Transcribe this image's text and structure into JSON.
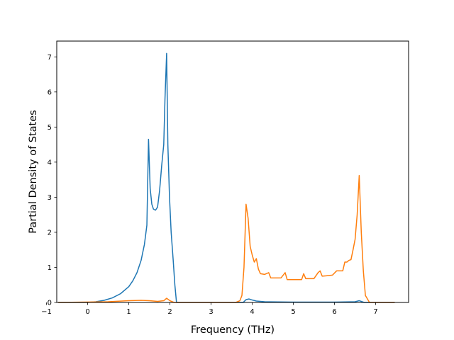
{
  "chart_data": {
    "type": "line",
    "title": "",
    "xlabel": "Frequency (THz)",
    "ylabel": "Partial Density of States",
    "xlim": [
      -0.75,
      7.8
    ],
    "ylim": [
      0,
      7.45
    ],
    "x_ticks": [
      -1,
      0,
      1,
      2,
      3,
      4,
      5,
      6,
      7
    ],
    "y_ticks": [
      0,
      1,
      2,
      3,
      4,
      5,
      6,
      7
    ],
    "grid": false,
    "series": [
      {
        "color": "#1f77b4",
        "x": [
          -0.7,
          0.0,
          0.2,
          0.4,
          0.6,
          0.8,
          1.0,
          1.1,
          1.2,
          1.3,
          1.38,
          1.44,
          1.48,
          1.52,
          1.56,
          1.6,
          1.65,
          1.7,
          1.75,
          1.8,
          1.85,
          1.88,
          1.92,
          1.95,
          1.99,
          2.03,
          2.08,
          2.12,
          2.16,
          2.5,
          3.0,
          3.5,
          3.78,
          3.85,
          3.92,
          4.0,
          4.1,
          4.3,
          5.0,
          6.0,
          6.5,
          6.6,
          6.72,
          7.0,
          7.45
        ],
        "y": [
          0.0,
          0.0,
          0.02,
          0.06,
          0.13,
          0.25,
          0.45,
          0.62,
          0.85,
          1.2,
          1.65,
          2.2,
          4.65,
          3.25,
          2.8,
          2.66,
          2.63,
          2.72,
          3.2,
          3.9,
          4.5,
          5.8,
          7.1,
          4.5,
          3.0,
          2.0,
          1.2,
          0.5,
          0.0,
          0.0,
          0.0,
          0.0,
          0.0,
          0.08,
          0.1,
          0.07,
          0.04,
          0.02,
          0.01,
          0.01,
          0.02,
          0.05,
          0.0,
          0.0,
          0.0
        ]
      },
      {
        "color": "#ff7f0e",
        "x": [
          -0.7,
          0.5,
          1.0,
          1.3,
          1.5,
          1.7,
          1.85,
          1.92,
          2.0,
          2.1,
          3.0,
          3.6,
          3.7,
          3.75,
          3.8,
          3.85,
          3.9,
          3.95,
          4.0,
          4.05,
          4.1,
          4.15,
          4.2,
          4.3,
          4.4,
          4.45,
          4.55,
          4.7,
          4.8,
          4.85,
          5.0,
          5.2,
          5.25,
          5.3,
          5.5,
          5.6,
          5.65,
          5.7,
          5.8,
          5.95,
          6.05,
          6.15,
          6.2,
          6.25,
          6.3,
          6.35,
          6.4,
          6.45,
          6.5,
          6.55,
          6.6,
          6.65,
          6.7,
          6.75,
          6.85,
          7.45
        ],
        "y": [
          0.0,
          0.02,
          0.05,
          0.06,
          0.05,
          0.03,
          0.05,
          0.12,
          0.05,
          0.0,
          0.0,
          0.0,
          0.05,
          0.2,
          1.0,
          2.8,
          2.4,
          1.6,
          1.35,
          1.15,
          1.25,
          0.95,
          0.82,
          0.8,
          0.85,
          0.7,
          0.7,
          0.7,
          0.85,
          0.65,
          0.65,
          0.65,
          0.82,
          0.68,
          0.68,
          0.85,
          0.9,
          0.75,
          0.76,
          0.78,
          0.9,
          0.9,
          0.9,
          1.15,
          1.15,
          1.2,
          1.22,
          1.5,
          1.8,
          2.5,
          3.62,
          2.0,
          0.9,
          0.2,
          0.0,
          0.0
        ]
      }
    ]
  }
}
